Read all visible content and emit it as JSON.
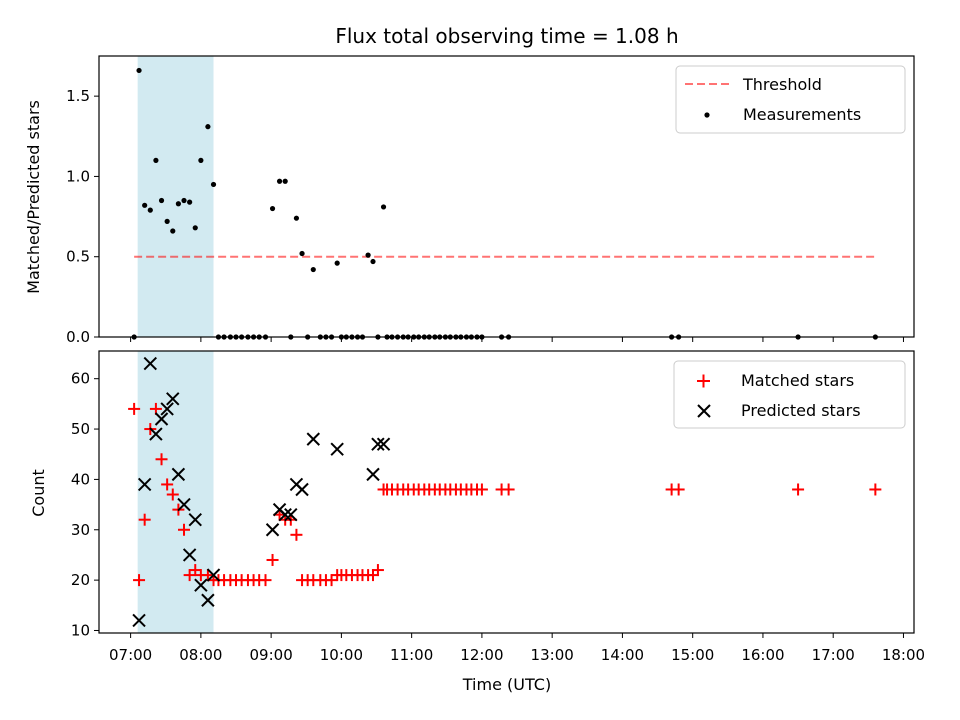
{
  "colors": {
    "span": "#add8e6",
    "threshold": "#ff0000",
    "measurement": "#000000",
    "matched": "#ff0000",
    "predicted": "#000000"
  },
  "chart_data": [
    {
      "type": "scatter",
      "title": "Flux total observing time = 1.08 h",
      "xlabel": "",
      "ylabel": "Matched/Predicted stars",
      "ylim": [
        0,
        1.75
      ],
      "yticks": [
        "0.0",
        "0.5",
        "1.0",
        "1.5"
      ],
      "shaded_span": {
        "from": 7.1,
        "to": 8.18
      },
      "threshold": {
        "name": "Threshold",
        "value": 0.5,
        "x_from": 7.05,
        "x_to": 17.6
      },
      "legend_position": "top-right",
      "series": [
        {
          "name": "Measurements",
          "x": [
            7.05,
            7.12,
            7.2,
            7.28,
            7.36,
            7.44,
            7.52,
            7.6,
            7.68,
            7.76,
            7.84,
            7.92,
            8.0,
            8.1,
            8.18,
            8.25,
            8.33,
            8.42,
            8.5,
            8.58,
            8.67,
            8.75,
            8.83,
            8.92,
            9.02,
            9.12,
            9.2,
            9.28,
            9.36,
            9.44,
            9.52,
            9.6,
            9.7,
            9.78,
            9.86,
            9.94,
            10.0,
            10.07,
            10.15,
            10.23,
            10.3,
            10.38,
            10.45,
            10.52,
            10.6,
            10.65,
            10.72,
            10.8,
            10.88,
            10.95,
            11.03,
            11.1,
            11.18,
            11.25,
            11.33,
            11.4,
            11.48,
            11.55,
            11.63,
            11.7,
            11.78,
            11.85,
            11.93,
            12.0,
            12.28,
            12.38,
            14.7,
            14.8,
            16.5,
            17.6
          ],
          "y": [
            0,
            1.66,
            0.82,
            0.79,
            1.1,
            0.85,
            0.72,
            0.66,
            0.83,
            0.85,
            0.84,
            0.68,
            1.1,
            1.31,
            0.95,
            0,
            0,
            0,
            0,
            0,
            0,
            0,
            0,
            0,
            0.8,
            0.97,
            0.97,
            0,
            0.74,
            0.52,
            0,
            0.42,
            0,
            0,
            0,
            0.46,
            0,
            0,
            0,
            0,
            0,
            0.51,
            0.47,
            0,
            0.81,
            0,
            0,
            0,
            0,
            0,
            0,
            0,
            0,
            0,
            0,
            0,
            0,
            0,
            0,
            0,
            0,
            0,
            0,
            0,
            0,
            0,
            0,
            0,
            0,
            0
          ]
        }
      ]
    },
    {
      "type": "scatter",
      "title": "",
      "xlabel": "Time (UTC)",
      "ylabel": "Count",
      "ylim": [
        9.5,
        65.5
      ],
      "yticks": [
        "10",
        "20",
        "30",
        "40",
        "50",
        "60"
      ],
      "x_ticks": [
        "07:00",
        "08:00",
        "09:00",
        "10:00",
        "11:00",
        "12:00",
        "13:00",
        "14:00",
        "15:00",
        "16:00",
        "17:00",
        "18:00"
      ],
      "shaded_span": {
        "from": 7.1,
        "to": 8.18
      },
      "legend_position": "top-right",
      "series": [
        {
          "name": "Matched stars",
          "x": [
            7.05,
            7.12,
            7.2,
            7.28,
            7.36,
            7.44,
            7.52,
            7.6,
            7.68,
            7.76,
            7.84,
            7.92,
            8.0,
            8.1,
            8.18,
            8.25,
            8.33,
            8.42,
            8.5,
            8.58,
            8.67,
            8.75,
            8.83,
            8.92,
            9.02,
            9.12,
            9.2,
            9.28,
            9.36,
            9.44,
            9.52,
            9.6,
            9.7,
            9.78,
            9.86,
            9.94,
            10.0,
            10.07,
            10.15,
            10.23,
            10.3,
            10.38,
            10.45,
            10.52,
            10.6,
            10.65,
            10.72,
            10.8,
            10.88,
            10.95,
            11.03,
            11.1,
            11.18,
            11.25,
            11.33,
            11.4,
            11.48,
            11.55,
            11.63,
            11.7,
            11.78,
            11.85,
            11.93,
            12.0,
            12.28,
            12.38,
            14.7,
            14.8,
            16.5,
            17.6
          ],
          "y": [
            54,
            20,
            32,
            50,
            54,
            44,
            39,
            37,
            34,
            30,
            21,
            22,
            21,
            21,
            20,
            20,
            20,
            20,
            20,
            20,
            20,
            20,
            20,
            20,
            24,
            33,
            32,
            32,
            29,
            20,
            20,
            20,
            20,
            20,
            20,
            21,
            21,
            21,
            21,
            21,
            21,
            21,
            21,
            22,
            38,
            38,
            38,
            38,
            38,
            38,
            38,
            38,
            38,
            38,
            38,
            38,
            38,
            38,
            38,
            38,
            38,
            38,
            38,
            38,
            38,
            38,
            38,
            38,
            38,
            38
          ]
        },
        {
          "name": "Predicted stars",
          "x": [
            7.12,
            7.2,
            7.28,
            7.36,
            7.44,
            7.52,
            7.6,
            7.68,
            7.76,
            7.84,
            7.92,
            8.0,
            8.1,
            8.18,
            9.02,
            9.12,
            9.2,
            9.28,
            9.36,
            9.44,
            9.6,
            9.94,
            10.45,
            10.52,
            10.6
          ],
          "y": [
            12,
            39,
            63,
            49,
            52,
            54,
            56,
            41,
            35,
            25,
            32,
            19,
            16,
            21,
            30,
            34,
            33,
            33,
            39,
            38,
            48,
            46,
            41,
            47,
            47
          ]
        }
      ]
    }
  ]
}
